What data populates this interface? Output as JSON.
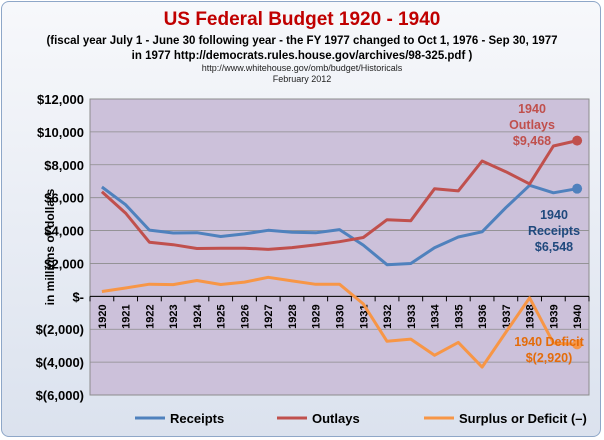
{
  "header": {
    "title": "US Federal Budget 1920 - 1940",
    "subtitle_line1": "(fiscal year July 1 - June 30 following year - the FY 1977 changed to Oct 1, 1976 - Sep 30, 1977",
    "subtitle_line2": "in 1977 http://democrats.rules.house.gov/archives/98-325.pdf  )",
    "source_url": "http://www.whitehouse.gov/omb/budget/Historicals",
    "source_date": "February 2012"
  },
  "colors": {
    "title": "#c00000",
    "plot_bg": "#ccc1da",
    "receipts": "#4f81bd",
    "outlays": "#c0504d",
    "surplus": "#f79646",
    "receipts_label": "#1f497d",
    "outlays_label": "#c0504d",
    "deficit_label": "#e46c0a"
  },
  "chart_data": {
    "type": "line",
    "ylabel": "in millions of dollars",
    "xlabel": "",
    "ylim": [
      -6000,
      12000
    ],
    "y_ticks": [
      -6000,
      -4000,
      -2000,
      0,
      2000,
      4000,
      6000,
      8000,
      10000,
      12000
    ],
    "y_tick_labels": [
      "$(6,000)",
      "$(4,000)",
      "$(2,000)",
      "$-",
      "$2,000",
      "$4,000",
      "$6,000",
      "$8,000",
      "$10,000",
      "$12,000"
    ],
    "grid": "horizontal",
    "legend_position": "bottom",
    "categories": [
      "1920",
      "1921",
      "1922",
      "1923",
      "1924",
      "1925",
      "1926",
      "1927",
      "1928",
      "1929",
      "1930",
      "1931",
      "1932",
      "1933",
      "1934",
      "1935",
      "1936",
      "1937",
      "1938",
      "1939",
      "1940"
    ],
    "series": [
      {
        "name": "Receipts",
        "color": "#4f81bd",
        "values": [
          6649,
          5571,
          4026,
          3853,
          3871,
          3641,
          3795,
          4013,
          3900,
          3862,
          4058,
          3116,
          1924,
          1997,
          2955,
          3609,
          3923,
          5387,
          6751,
          6295,
          6548
        ]
      },
      {
        "name": "Outlays",
        "color": "#c0504d",
        "values": [
          6357,
          5062,
          3289,
          3140,
          2908,
          2924,
          2930,
          2857,
          2961,
          3127,
          3320,
          3577,
          4659,
          4598,
          6541,
          6412,
          8228,
          7580,
          6840,
          9141,
          9468
        ]
      },
      {
        "name": "Surplus or Deficit (–)",
        "color": "#f79646",
        "values": [
          291,
          509,
          736,
          713,
          963,
          717,
          865,
          1155,
          939,
          734,
          738,
          -462,
          -2735,
          -2602,
          -3586,
          -2803,
          -4304,
          -2193,
          -89,
          -2846,
          -2920
        ]
      }
    ],
    "annotations": [
      {
        "series": "Outlays",
        "lines": [
          "1940",
          "Outlays",
          "$9,468"
        ]
      },
      {
        "series": "Receipts",
        "lines": [
          "1940",
          "Receipts",
          "$6,548"
        ]
      },
      {
        "series": "Surplus or Deficit (–)",
        "lines": [
          "1940 Deficit",
          "$(2,920)"
        ]
      }
    ]
  }
}
